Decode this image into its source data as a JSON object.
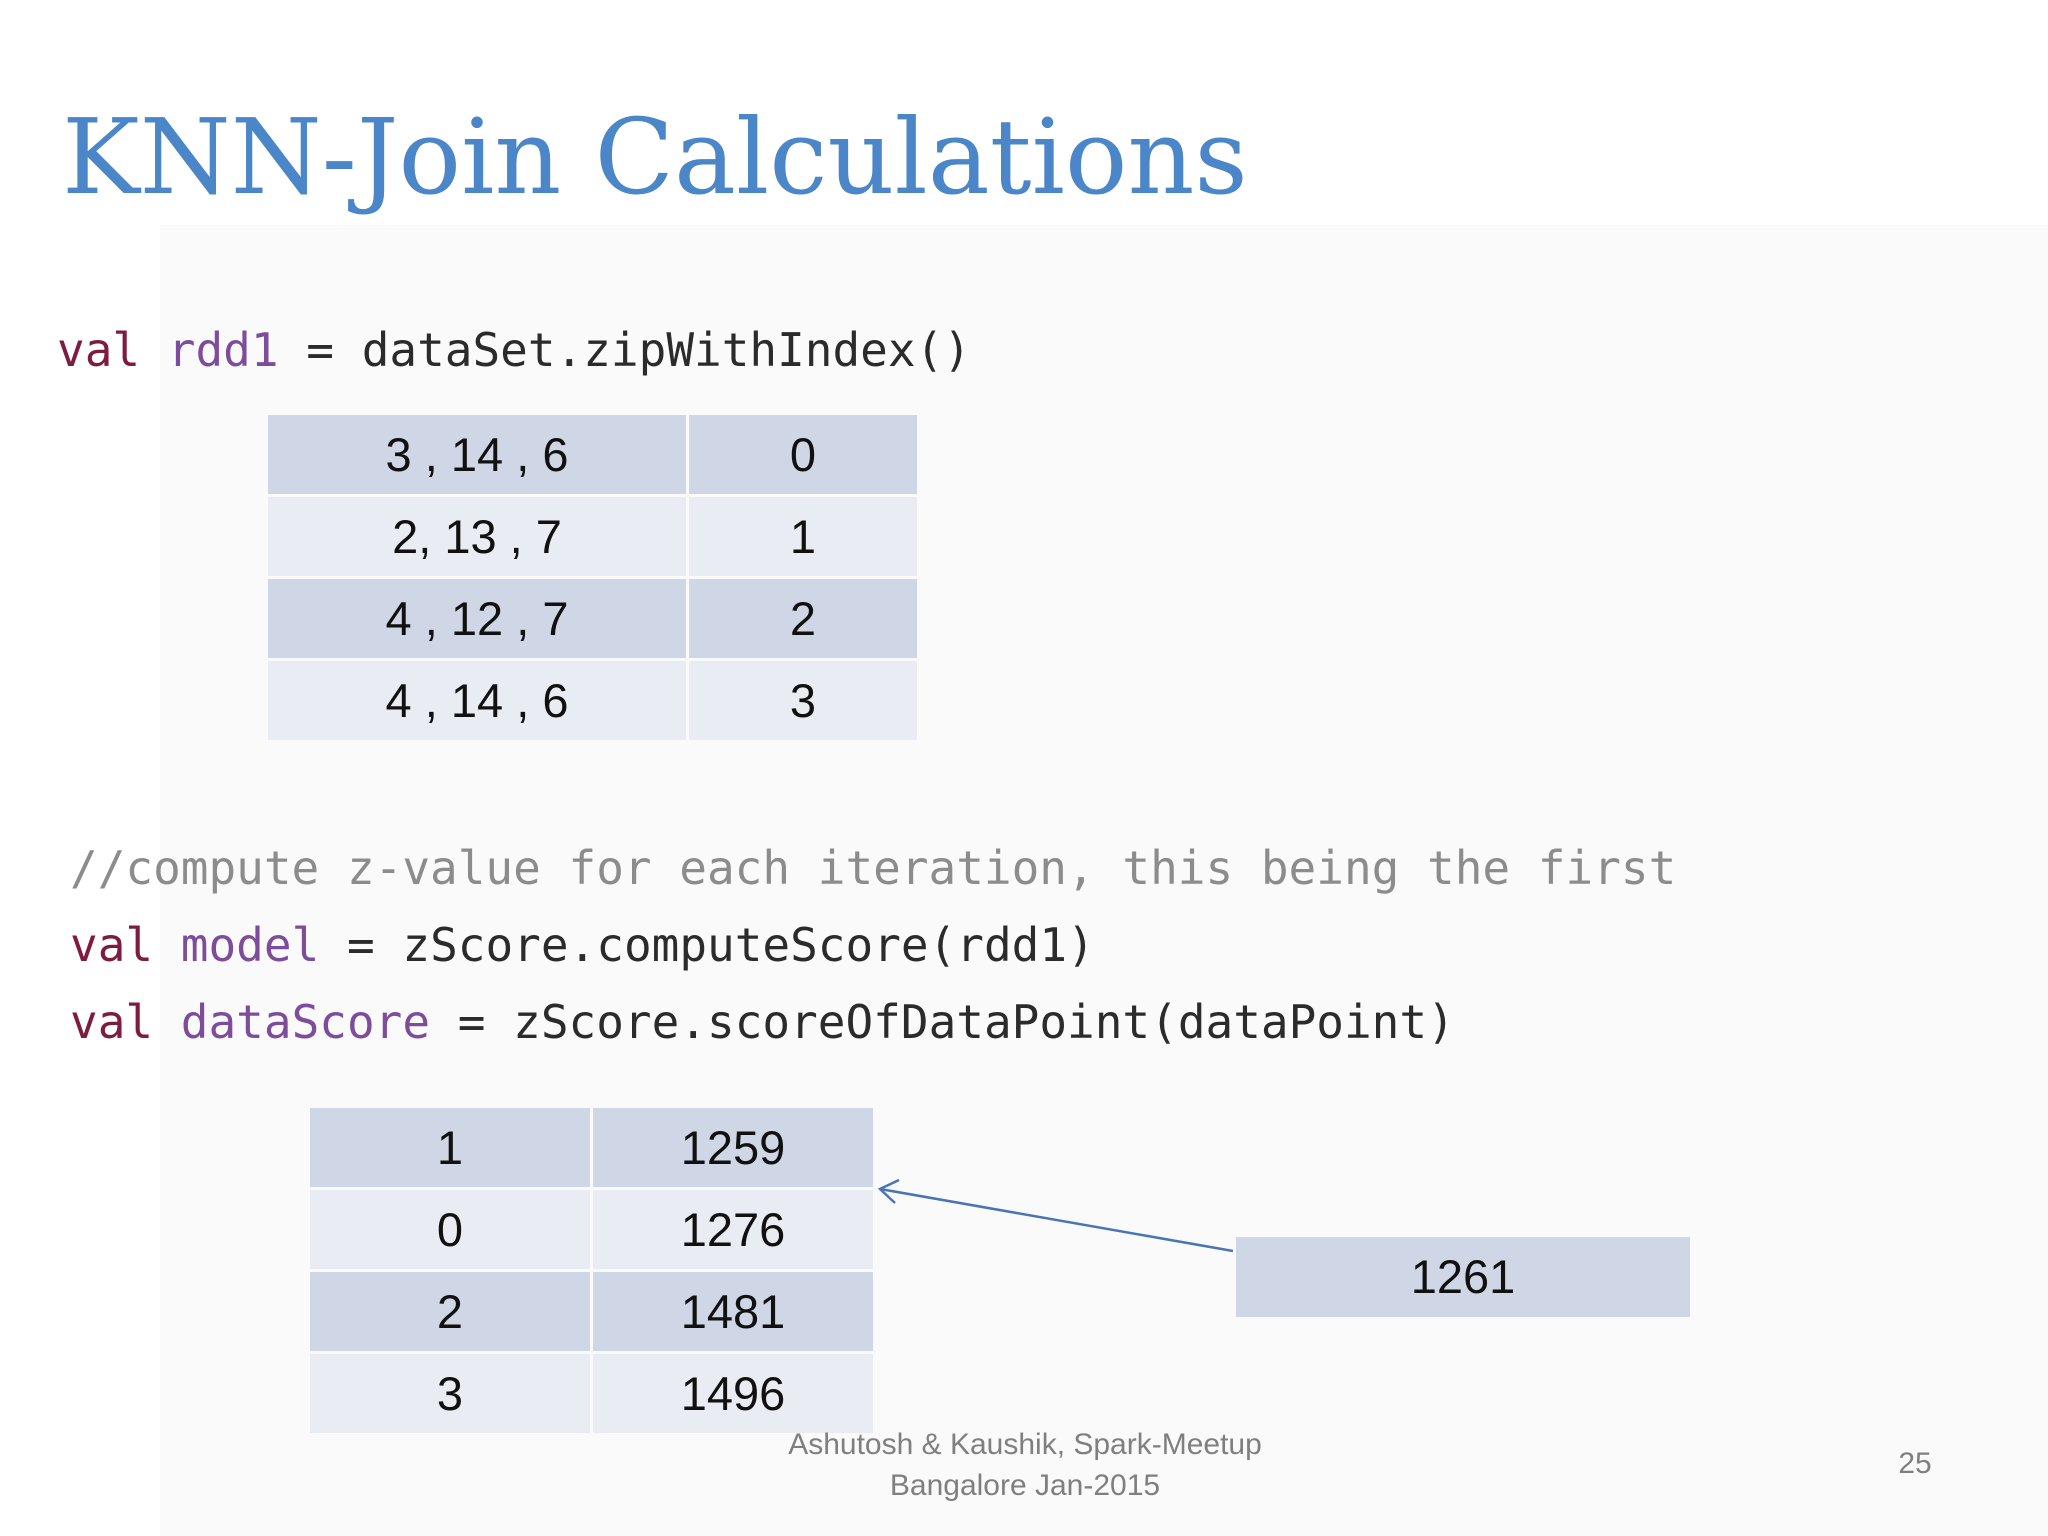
{
  "title": "KNN-Join Calculations",
  "code1": {
    "kw": "val",
    "var": "rdd1",
    "op": "=",
    "expr": "dataSet.zipWithIndex()"
  },
  "table1": [
    [
      "3 , 14 , 6",
      "0"
    ],
    [
      "2, 13 , 7",
      "1"
    ],
    [
      "4 , 12 , 7",
      "2"
    ],
    [
      "4 , 14 , 6",
      "3"
    ]
  ],
  "code2": {
    "comment": "//compute z-value for each iteration, this being the first",
    "line1": {
      "kw": "val",
      "var": "model",
      "op": "=",
      "expr": "zScore.computeScore(rdd1)"
    },
    "line2": {
      "kw": "val",
      "var": "dataScore",
      "op": "=",
      "expr": "zScore.scoreOfDataPoint(dataPoint)"
    }
  },
  "table2": [
    [
      "1",
      "1259"
    ],
    [
      "0",
      "1276"
    ],
    [
      "2",
      "1481"
    ],
    [
      "3",
      "1496"
    ]
  ],
  "data_point_score": "1261",
  "footer": {
    "line1": "Ashutosh & Kaushik, Spark-Meetup",
    "line2": "Bangalore Jan-2015"
  },
  "page_number": "25",
  "colors": {
    "title": "#4a86c8",
    "keyword": "#7f1a40",
    "variable": "#7d4d9c",
    "comment": "#8c8c8c",
    "row_dark": "#cfd7e6",
    "row_light": "#e9ecf2",
    "arrow": "#4a74b8"
  }
}
